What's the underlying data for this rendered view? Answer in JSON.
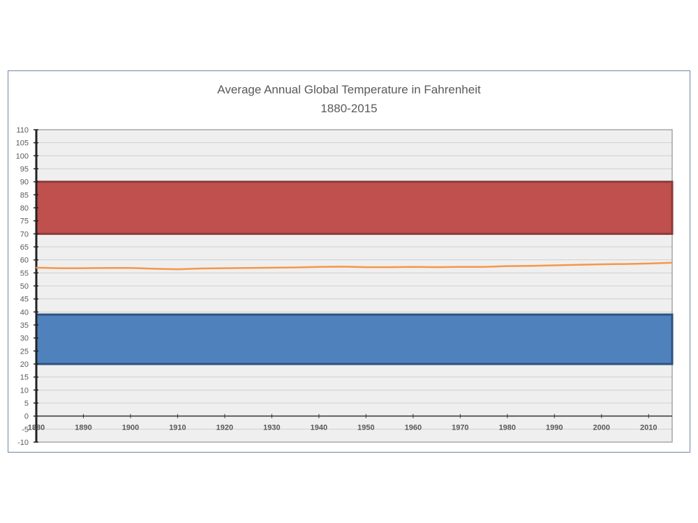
{
  "chart_data": {
    "type": "line",
    "title": "Average Annual Global Temperature in Fahrenheit",
    "subtitle": "1880-2015",
    "xlabel": "",
    "ylabel": "",
    "xlim": [
      1880,
      2015
    ],
    "ylim": [
      -10,
      110
    ],
    "y_ticks": [
      -10,
      -5,
      0,
      5,
      10,
      15,
      20,
      25,
      30,
      35,
      40,
      45,
      50,
      55,
      60,
      65,
      70,
      75,
      80,
      85,
      90,
      95,
      100,
      105,
      110
    ],
    "x_ticks": [
      1880,
      1890,
      1900,
      1910,
      1920,
      1930,
      1940,
      1950,
      1960,
      1970,
      1980,
      1990,
      2000,
      2010
    ],
    "grid": true,
    "legend": "none",
    "bands": [
      {
        "y_from": 70,
        "y_to": 90,
        "color": "#c0504d",
        "border": "#8c3a38"
      },
      {
        "y_from": 20,
        "y_to": 39,
        "color": "#4f81bd",
        "border": "#2f5280"
      }
    ],
    "series": [
      {
        "color": "#f79646",
        "x": [
          1880,
          1885,
          1890,
          1895,
          1900,
          1905,
          1910,
          1915,
          1920,
          1925,
          1930,
          1935,
          1940,
          1945,
          1950,
          1955,
          1960,
          1965,
          1970,
          1975,
          1980,
          1985,
          1990,
          1995,
          2000,
          2005,
          2010,
          2015
        ],
        "values": [
          57.0,
          56.8,
          56.8,
          56.9,
          56.9,
          56.6,
          56.4,
          56.7,
          56.8,
          56.9,
          57.0,
          57.1,
          57.3,
          57.4,
          57.2,
          57.2,
          57.3,
          57.2,
          57.3,
          57.3,
          57.6,
          57.7,
          57.9,
          58.1,
          58.3,
          58.4,
          58.6,
          58.9
        ]
      }
    ]
  }
}
